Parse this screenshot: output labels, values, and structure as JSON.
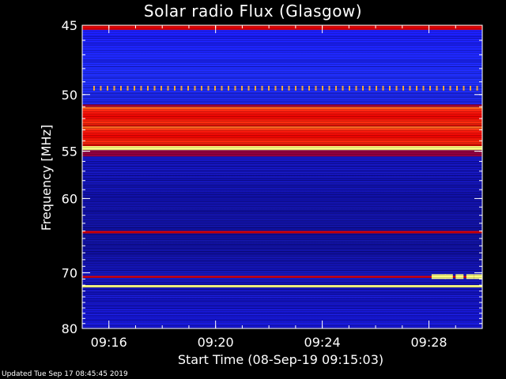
{
  "chart_data": {
    "type": "heatmap",
    "title": "Solar radio Flux (Glasgow)",
    "xlabel": "Start Time (08-Sep-19 09:15:03)",
    "ylabel": "Frequency [MHz]",
    "x_ticks": [
      "09:16",
      "09:20",
      "09:24",
      "09:28"
    ],
    "x_tick_minutes": [
      1,
      5,
      9,
      13
    ],
    "xlim_minutes": [
      0,
      15
    ],
    "y_ticks": [
      45,
      50,
      55,
      60,
      70,
      80
    ],
    "ylim": [
      45,
      80
    ],
    "y_scale": "reciprocal",
    "colors": {
      "low": "#0000c8",
      "mid": "#e00000",
      "high": "#ffff80"
    },
    "bands": [
      {
        "freq_start": 45.0,
        "freq_end": 45.3,
        "level": "mid"
      },
      {
        "freq_start": 51.0,
        "freq_end": 52.7,
        "level": "mid"
      },
      {
        "freq_start": 52.7,
        "freq_end": 54.5,
        "level": "mid"
      },
      {
        "freq_start": 54.5,
        "freq_end": 54.9,
        "level": "high"
      },
      {
        "freq_start": 64.0,
        "freq_end": 64.3,
        "level": "mid"
      },
      {
        "freq_start": 70.5,
        "freq_end": 70.8,
        "level": "mid"
      },
      {
        "freq_start": 72.0,
        "freq_end": 72.4,
        "level": "high"
      }
    ]
  },
  "footer": {
    "updated": "Updated Tue Sep 17 08:45:45 2019"
  }
}
